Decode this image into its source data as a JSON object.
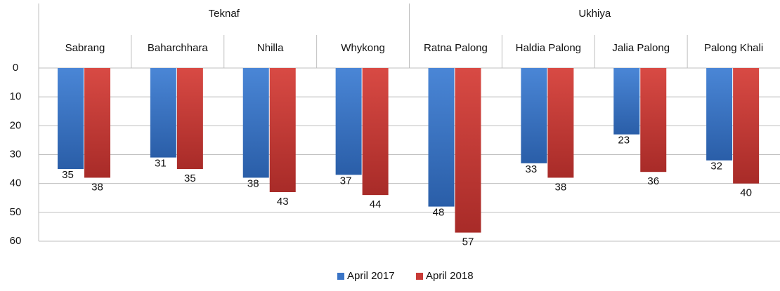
{
  "chart_data": {
    "type": "bar",
    "groups": [
      {
        "label": "Teknaf",
        "categories": [
          "Sabrang",
          "Baharchhara",
          "Nhilla",
          "Whykong"
        ]
      },
      {
        "label": "Ukhiya",
        "categories": [
          "Ratna Palong",
          "Haldia Palong",
          "Jalia Palong",
          "Palong Khali"
        ]
      }
    ],
    "series": [
      {
        "name": "April 2017",
        "color": "#3a74c6",
        "values": [
          35,
          31,
          38,
          37,
          48,
          33,
          23,
          32
        ]
      },
      {
        "name": "April 2018",
        "color": "#c83a36",
        "values": [
          38,
          35,
          43,
          44,
          57,
          38,
          36,
          40
        ]
      }
    ],
    "ylim": [
      0,
      60
    ],
    "yticks": [
      0,
      10,
      20,
      30,
      40,
      50,
      60
    ],
    "y_inverted": true,
    "grid": true,
    "legend": "bottom"
  }
}
